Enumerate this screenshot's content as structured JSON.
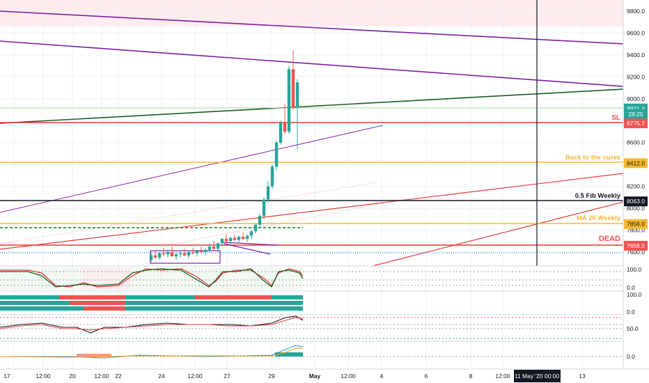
{
  "chart_data": {
    "type": "candlestick",
    "price_axis": {
      "ticks": [
        "9800.0",
        "9600.0",
        "9400.0",
        "9200.0",
        "9000.0",
        "8800.0",
        "8600.0",
        "8400.0",
        "8200.0",
        "8000.0",
        "7800.0",
        "7600.0"
      ]
    },
    "time_axis": {
      "ticks": [
        "17",
        "12:00",
        "20",
        "12:00",
        "22",
        "24",
        "12:00",
        "27",
        "29",
        "May",
        "12:00",
        "4",
        "6",
        "8",
        "12:00",
        "13"
      ],
      "crosshair_label": "11 May '20  00:00"
    },
    "price_badges": [
      {
        "label": "8911.4",
        "price": 8911.4,
        "color": "#26a69a"
      },
      {
        "label": "28:25",
        "price": 8860,
        "color": "#26a69a"
      },
      {
        "label": "8775.7",
        "price": 8775.7,
        "color": "#ef5350"
      },
      {
        "label": "8412.0",
        "price": 8412.0,
        "color": "#f5b82e"
      },
      {
        "label": "8063.0",
        "price": 8063.0,
        "color": "#131722"
      },
      {
        "label": "7856.0",
        "price": 7856.0,
        "color": "#f5b82e"
      },
      {
        "label": "7658.0",
        "price": 7658.0,
        "color": "#ef5350"
      }
    ],
    "annotations": [
      {
        "text": "SL",
        "price": 8775.7,
        "color": "#ef5350"
      },
      {
        "text": "Back to the curve",
        "price": 8412.0,
        "color": "#f5b82e"
      },
      {
        "text": "0.5 Fib Weekly",
        "price": 8063.0,
        "color": "#131722"
      },
      {
        "text": "MA 20 Weekly",
        "price": 7856.0,
        "color": "#f5b82e"
      },
      {
        "text": "DEAD",
        "price": 7658.0,
        "color": "#ef5350"
      }
    ],
    "candles": [
      [
        7530,
        7600,
        7510,
        7570
      ],
      [
        7570,
        7620,
        7540,
        7550
      ],
      [
        7550,
        7600,
        7530,
        7590
      ],
      [
        7590,
        7640,
        7560,
        7580
      ],
      [
        7580,
        7620,
        7550,
        7600
      ],
      [
        7600,
        7650,
        7570,
        7560
      ],
      [
        7560,
        7600,
        7530,
        7580
      ],
      [
        7580,
        7610,
        7550,
        7590
      ],
      [
        7590,
        7630,
        7560,
        7570
      ],
      [
        7570,
        7610,
        7540,
        7600
      ],
      [
        7600,
        7640,
        7580,
        7590
      ],
      [
        7590,
        7620,
        7560,
        7610
      ],
      [
        7610,
        7650,
        7590,
        7600
      ],
      [
        7600,
        7640,
        7570,
        7620
      ],
      [
        7620,
        7680,
        7600,
        7650
      ],
      [
        7650,
        7700,
        7620,
        7630
      ],
      [
        7630,
        7690,
        7600,
        7680
      ],
      [
        7680,
        7730,
        7650,
        7720
      ],
      [
        7720,
        7760,
        7690,
        7700
      ],
      [
        7700,
        7740,
        7670,
        7730
      ],
      [
        7730,
        7760,
        7700,
        7710
      ],
      [
        7710,
        7750,
        7680,
        7740
      ],
      [
        7740,
        7780,
        7710,
        7720
      ],
      [
        7720,
        7760,
        7690,
        7750
      ],
      [
        7750,
        7800,
        7720,
        7790
      ],
      [
        7790,
        7860,
        7770,
        7850
      ],
      [
        7850,
        7950,
        7820,
        7930
      ],
      [
        7930,
        8100,
        7900,
        8080
      ],
      [
        8080,
        8250,
        8050,
        8200
      ],
      [
        8200,
        8400,
        8180,
        8380
      ],
      [
        8380,
        8620,
        8350,
        8600
      ],
      [
        8600,
        8800,
        8580,
        8780
      ],
      [
        8780,
        8950,
        8680,
        8700
      ],
      [
        8700,
        9300,
        8680,
        9270
      ],
      [
        9270,
        9440,
        8900,
        8920
      ],
      [
        8920,
        9180,
        8540,
        9150
      ]
    ],
    "trend_lines": [
      {
        "color": "#7b1fa2",
        "p1": [
          0,
          9960
        ],
        "p2": [
          41,
          9500
        ],
        "units": "bar-index/price"
      },
      {
        "color": "#7b1fa2",
        "p1": [
          0,
          9530
        ],
        "p2": [
          41,
          9110
        ],
        "units": "bar-index/price"
      },
      {
        "color": "#1b5e20",
        "p1": [
          0,
          8770
        ],
        "p2": [
          41,
          9090
        ],
        "units": "bar-index/price"
      },
      {
        "color": "#e53935",
        "p1": [
          0,
          7680
        ],
        "p2": [
          41,
          8300
        ],
        "units": "bar-index/price"
      },
      {
        "color": "#e53935",
        "p1": [
          23,
          7600
        ],
        "p2": [
          41,
          8060
        ],
        "units": "bar-index/price"
      },
      {
        "color": "#8e24aa",
        "p1": [
          0,
          8030
        ],
        "p2": [
          25,
          8750
        ],
        "units": "bar-index/price"
      }
    ],
    "sub_panes": [
      {
        "name": "stoch",
        "ticks": [
          "100.0",
          "0.0"
        ]
      },
      {
        "name": "heatmap",
        "ticks": [
          "100.0",
          "0.0"
        ]
      },
      {
        "name": "rsi",
        "ticks": [
          "50.0"
        ]
      },
      {
        "name": "macd",
        "ticks": [
          "0.0"
        ]
      }
    ],
    "colors": {
      "up": "#26a69a",
      "down": "#ef5350",
      "grid": "#f0f3fa",
      "axis_text": "#131722"
    }
  }
}
